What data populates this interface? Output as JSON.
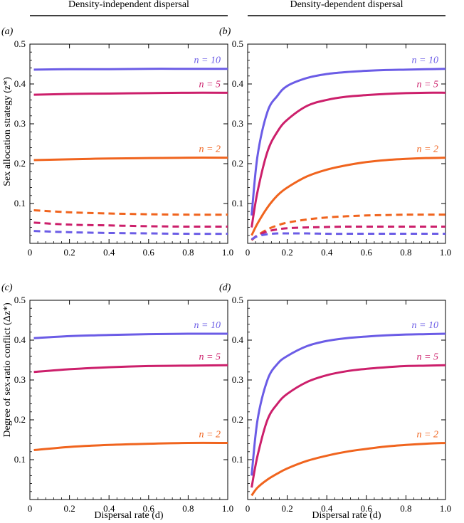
{
  "headers": {
    "left": "Density-independent dispersal",
    "right": "Density-dependent dispersal"
  },
  "axis_titles": {
    "ylabel_top": "Sex allocation strategy (z*)",
    "ylabel_bottom": "Degree of sex-ratio conflict (Δz*)",
    "xlabel": "Dispersal rate (d)"
  },
  "colors": {
    "n10": "#6b5ce6",
    "n5": "#cc1f6b",
    "n2": "#f0641e"
  },
  "chart_data": [
    {
      "panel": "(a)",
      "type": "line",
      "xlim": [
        0,
        1
      ],
      "ylim": [
        0,
        0.5
      ],
      "xticks": [
        "0",
        "0.2",
        "0.4",
        "0.6",
        "0.8",
        "1.0"
      ],
      "yticks": [
        "0.1",
        "0.2",
        "0.3",
        "0.4",
        "0.5"
      ],
      "x": [
        0.02,
        0.2,
        0.4,
        0.6,
        0.8,
        1.0
      ],
      "series": [
        {
          "name": "n = 10",
          "color": "#6b5ce6",
          "dashed": false,
          "values": [
            0.436,
            0.437,
            0.437,
            0.438,
            0.438,
            0.438
          ]
        },
        {
          "name": "n = 5",
          "color": "#cc1f6b",
          "dashed": false,
          "values": [
            0.373,
            0.375,
            0.376,
            0.377,
            0.378,
            0.378
          ]
        },
        {
          "name": "n = 2",
          "color": "#f0641e",
          "dashed": false,
          "values": [
            0.209,
            0.211,
            0.213,
            0.214,
            0.215,
            0.215
          ]
        },
        {
          "color": "#f0641e",
          "dashed": true,
          "values": [
            0.083,
            0.078,
            0.075,
            0.073,
            0.072,
            0.072
          ]
        },
        {
          "color": "#cc1f6b",
          "dashed": true,
          "values": [
            0.052,
            0.047,
            0.045,
            0.043,
            0.042,
            0.042
          ]
        },
        {
          "color": "#6b5ce6",
          "dashed": true,
          "values": [
            0.031,
            0.028,
            0.026,
            0.025,
            0.024,
            0.024
          ]
        }
      ]
    },
    {
      "panel": "(b)",
      "type": "line",
      "xlim": [
        0,
        1
      ],
      "ylim": [
        0,
        0.5
      ],
      "xticks": [
        "0",
        "0.2",
        "0.4",
        "0.6",
        "0.8",
        "1.0"
      ],
      "yticks": [
        "0.1",
        "0.2",
        "0.3",
        "0.4",
        "0.5"
      ],
      "x": [
        0.02,
        0.05,
        0.1,
        0.15,
        0.2,
        0.3,
        0.4,
        0.5,
        0.6,
        0.7,
        0.8,
        0.9,
        1.0
      ],
      "series": [
        {
          "name": "n = 10",
          "color": "#6b5ce6",
          "dashed": false,
          "values": [
            0.07,
            0.22,
            0.33,
            0.37,
            0.395,
            0.415,
            0.425,
            0.43,
            0.433,
            0.435,
            0.436,
            0.437,
            0.438
          ]
        },
        {
          "name": "n = 5",
          "color": "#cc1f6b",
          "dashed": false,
          "values": [
            0.04,
            0.13,
            0.23,
            0.28,
            0.31,
            0.345,
            0.36,
            0.368,
            0.372,
            0.375,
            0.377,
            0.378,
            0.378
          ]
        },
        {
          "name": "n = 2",
          "color": "#f0641e",
          "dashed": false,
          "values": [
            0.02,
            0.05,
            0.09,
            0.12,
            0.14,
            0.168,
            0.185,
            0.196,
            0.204,
            0.209,
            0.212,
            0.214,
            0.215
          ]
        },
        {
          "color": "#f0641e",
          "dashed": true,
          "values": [
            0.008,
            0.02,
            0.035,
            0.045,
            0.052,
            0.06,
            0.065,
            0.068,
            0.07,
            0.071,
            0.072,
            0.072,
            0.072
          ]
        },
        {
          "color": "#cc1f6b",
          "dashed": true,
          "values": [
            0.009,
            0.02,
            0.03,
            0.035,
            0.038,
            0.04,
            0.041,
            0.042,
            0.042,
            0.042,
            0.042,
            0.042,
            0.042
          ]
        },
        {
          "color": "#6b5ce6",
          "dashed": true,
          "values": [
            0.01,
            0.018,
            0.023,
            0.025,
            0.025,
            0.025,
            0.024,
            0.024,
            0.024,
            0.024,
            0.024,
            0.024,
            0.024
          ]
        }
      ]
    },
    {
      "panel": "(c)",
      "type": "line",
      "xlim": [
        0,
        1
      ],
      "ylim": [
        0,
        0.5
      ],
      "xticks": [
        "0",
        "0.2",
        "0.4",
        "0.6",
        "0.8",
        "1.0"
      ],
      "yticks": [
        "0.1",
        "0.2",
        "0.3",
        "0.4",
        "0.5"
      ],
      "x": [
        0.02,
        0.2,
        0.4,
        0.6,
        0.8,
        1.0
      ],
      "series": [
        {
          "name": "n = 10",
          "color": "#6b5ce6",
          "dashed": false,
          "values": [
            0.405,
            0.41,
            0.413,
            0.415,
            0.416,
            0.416
          ]
        },
        {
          "name": "n = 5",
          "color": "#cc1f6b",
          "dashed": false,
          "values": [
            0.32,
            0.327,
            0.332,
            0.335,
            0.336,
            0.337
          ]
        },
        {
          "name": "n = 2",
          "color": "#f0641e",
          "dashed": false,
          "values": [
            0.124,
            0.132,
            0.137,
            0.14,
            0.142,
            0.142
          ]
        }
      ]
    },
    {
      "panel": "(d)",
      "type": "line",
      "xlim": [
        0,
        1
      ],
      "ylim": [
        0,
        0.5
      ],
      "xticks": [
        "0",
        "0.2",
        "0.4",
        "0.6",
        "0.8",
        "1.0"
      ],
      "yticks": [
        "0.1",
        "0.2",
        "0.3",
        "0.4",
        "0.5"
      ],
      "x": [
        0.02,
        0.05,
        0.1,
        0.15,
        0.2,
        0.3,
        0.4,
        0.5,
        0.6,
        0.7,
        0.8,
        0.9,
        1.0
      ],
      "series": [
        {
          "name": "n = 10",
          "color": "#6b5ce6",
          "dashed": false,
          "values": [
            0.06,
            0.2,
            0.3,
            0.34,
            0.36,
            0.385,
            0.398,
            0.405,
            0.409,
            0.412,
            0.414,
            0.415,
            0.416
          ]
        },
        {
          "name": "n = 5",
          "color": "#cc1f6b",
          "dashed": false,
          "values": [
            0.03,
            0.11,
            0.2,
            0.24,
            0.265,
            0.295,
            0.312,
            0.322,
            0.328,
            0.332,
            0.335,
            0.336,
            0.337
          ]
        },
        {
          "name": "n = 2",
          "color": "#f0641e",
          "dashed": false,
          "values": [
            0.01,
            0.03,
            0.05,
            0.065,
            0.078,
            0.097,
            0.11,
            0.12,
            0.127,
            0.133,
            0.137,
            0.14,
            0.142
          ]
        }
      ]
    }
  ]
}
